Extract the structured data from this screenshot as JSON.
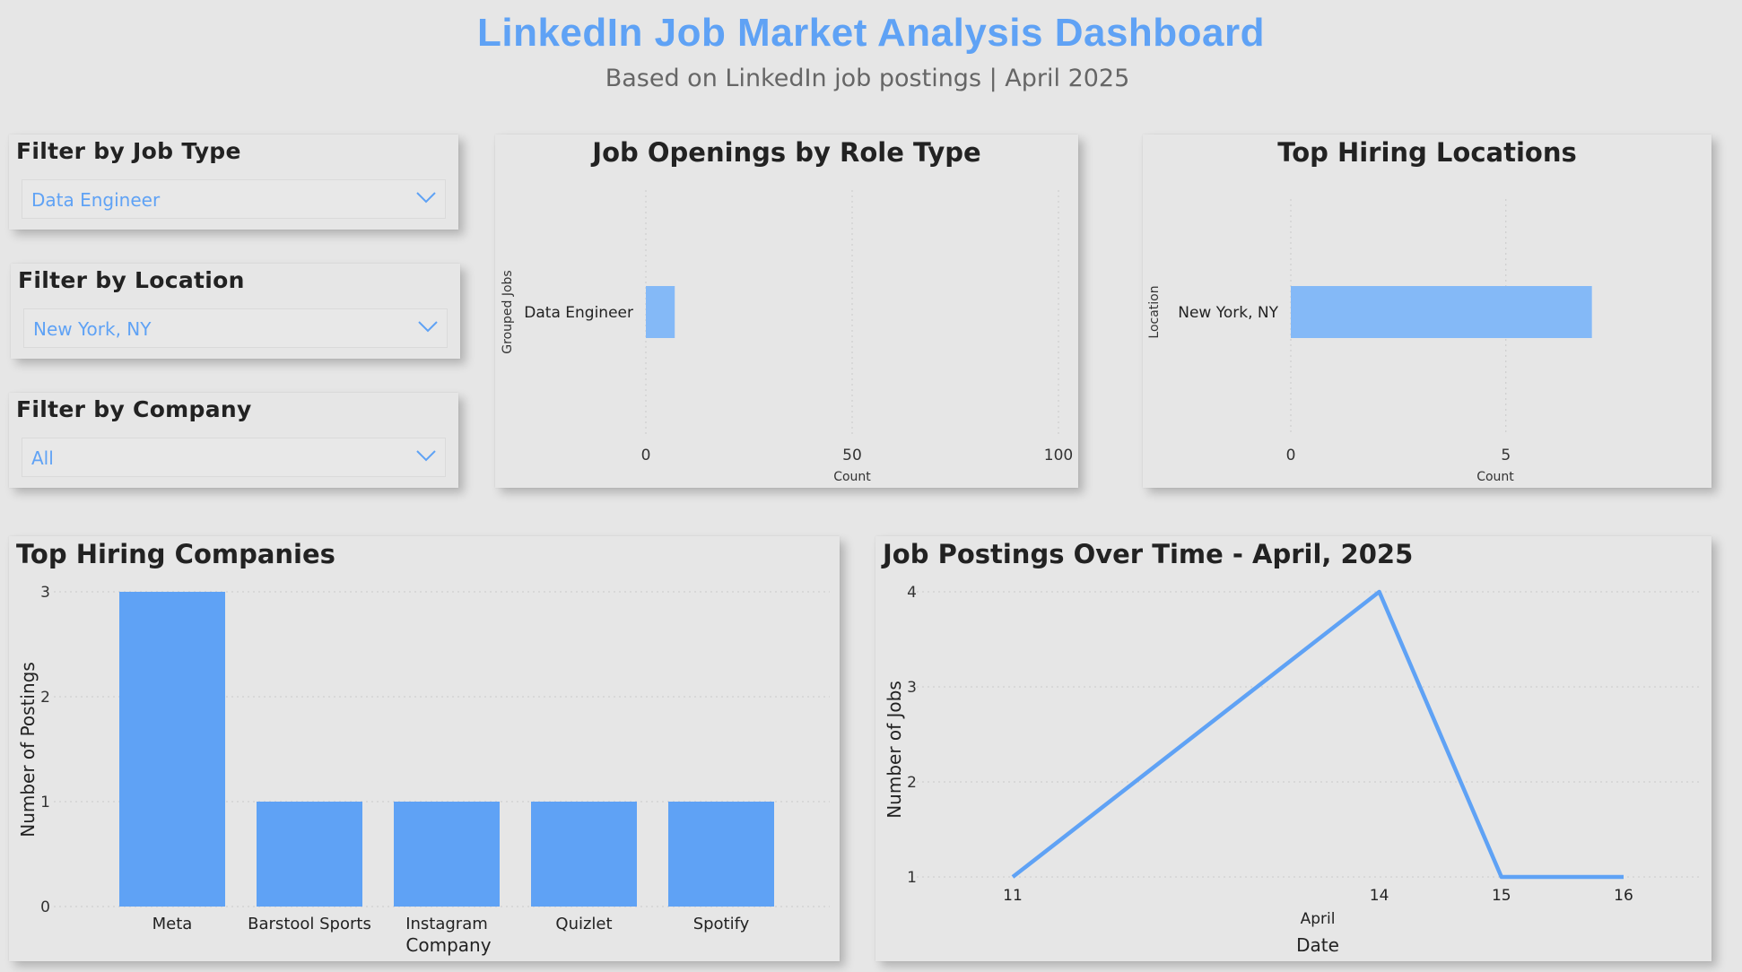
{
  "header": {
    "title": "LinkedIn Job Market Analysis Dashboard",
    "subtitle": "Based on LinkedIn job postings | April 2025"
  },
  "filters": [
    {
      "label": "Filter by Job Type",
      "value": "Data Engineer",
      "icon": "chevron-down-icon"
    },
    {
      "label": "Filter by Location",
      "value": "New York, NY",
      "icon": "chevron-down-icon"
    },
    {
      "label": "Filter by Company",
      "value": "All",
      "icon": "chevron-down-icon"
    }
  ],
  "colors": {
    "accent": "#5fa2f5",
    "bar_light": "#84b9f7",
    "text": "#222222",
    "background": "#e6e6e6"
  },
  "chart_data": [
    {
      "type": "bar",
      "orientation": "horizontal",
      "title": "Job Openings by Role Type",
      "categories": [
        "Data Engineer"
      ],
      "values": [
        7
      ],
      "xlabel": "Count",
      "ylabel": "Grouped Jobs",
      "xlim": [
        0,
        100
      ],
      "xticks": [
        "0",
        "50",
        "100"
      ],
      "grid": true
    },
    {
      "type": "bar",
      "orientation": "horizontal",
      "title": "Top Hiring Locations",
      "categories": [
        "New York, NY"
      ],
      "values": [
        7
      ],
      "xlabel": "Count",
      "ylabel": "Location",
      "xlim": [
        0,
        8.3
      ],
      "xticks": [
        "0",
        "5"
      ],
      "grid": true
    },
    {
      "type": "bar",
      "title": "Top Hiring Companies",
      "categories": [
        "Meta",
        "Barstool Sports",
        "Instagram",
        "Quizlet",
        "Spotify"
      ],
      "values": [
        3,
        1,
        1,
        1,
        1
      ],
      "xlabel": "Company",
      "ylabel": "Number of Postings",
      "ylim": [
        0,
        3
      ],
      "yticks": [
        "0",
        "1",
        "2",
        "3"
      ],
      "grid": true
    },
    {
      "type": "line",
      "title": "Job Postings Over Time - April, 2025",
      "x": [
        "11",
        "14",
        "15",
        "16"
      ],
      "values": [
        1,
        4,
        1,
        1
      ],
      "xlabel": "Date",
      "xsublabel": "April",
      "ylabel": "Number of Jobs",
      "ylim": [
        1,
        4
      ],
      "yticks": [
        "1",
        "2",
        "3",
        "4"
      ],
      "grid": true
    }
  ]
}
